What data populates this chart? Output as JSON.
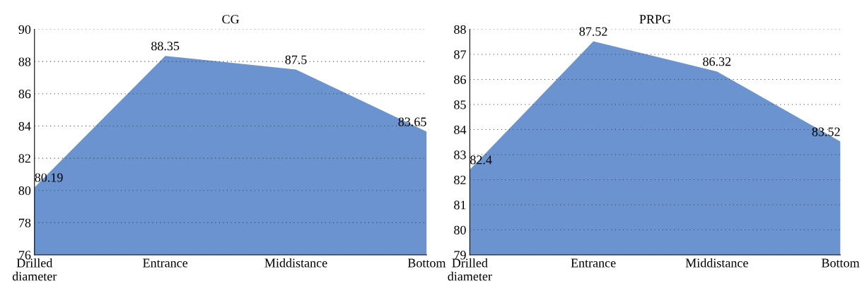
{
  "chart_data": [
    {
      "type": "area",
      "title": "CG",
      "categories": [
        "Drilled\ndiameter",
        "Entrance",
        "Middistance",
        "Bottom"
      ],
      "values": [
        80.19,
        88.35,
        87.5,
        83.65
      ],
      "color": "#6a93cf",
      "ylim": [
        76,
        90
      ],
      "yticks": [
        76,
        78,
        80,
        82,
        84,
        86,
        88,
        90
      ],
      "grid": "y",
      "data_labels": true
    },
    {
      "type": "area",
      "title": "PRPG",
      "categories": [
        "Drilled\ndiameter",
        "Entrance",
        "Middistance",
        "Bottom"
      ],
      "values": [
        82.4,
        87.52,
        86.32,
        83.52
      ],
      "color": "#6a93cf",
      "ylim": [
        79,
        88
      ],
      "yticks": [
        79,
        80,
        81,
        82,
        83,
        84,
        85,
        86,
        87,
        88
      ],
      "grid": "y",
      "data_labels": true
    }
  ]
}
